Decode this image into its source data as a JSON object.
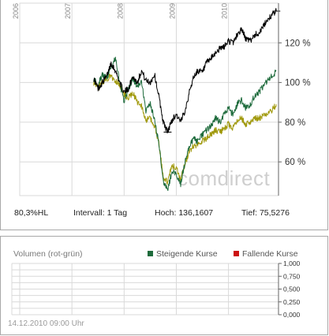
{
  "chart_data": [
    {
      "type": "line",
      "x_range": [
        "2006-01",
        "2010-12"
      ],
      "year_labels": [
        "2006",
        "2007",
        "2008",
        "2009",
        "2010"
      ],
      "ylim": [
        43,
        140
      ],
      "y_ticks": [
        60,
        80,
        100,
        120
      ],
      "y_tick_labels": [
        "60 %",
        "80 %",
        "100 %",
        "120 %"
      ],
      "series": [
        {
          "color": "#000000",
          "x": [
            "2007-06",
            "2007-07",
            "2007-08",
            "2007-09",
            "2007-10",
            "2007-11",
            "2007-12",
            "2008-01",
            "2008-02",
            "2008-03",
            "2008-04",
            "2008-05",
            "2008-06",
            "2008-07",
            "2008-08",
            "2008-09",
            "2008-10",
            "2008-11",
            "2008-12",
            "2009-01",
            "2009-02",
            "2009-03",
            "2009-04",
            "2009-05",
            "2009-06",
            "2009-07",
            "2009-08",
            "2009-09",
            "2009-10",
            "2009-11",
            "2009-12",
            "2010-01",
            "2010-02",
            "2010-03",
            "2010-04",
            "2010-05",
            "2010-06",
            "2010-07",
            "2010-08",
            "2010-09",
            "2010-10",
            "2010-11",
            "2010-12"
          ],
          "y": [
            102,
            97,
            100,
            103,
            110,
            106,
            100,
            95,
            97,
            103,
            100,
            106,
            101,
            100,
            104,
            93,
            80,
            75,
            81,
            84,
            80,
            86,
            95,
            103,
            106,
            105,
            110,
            112,
            115,
            117,
            118,
            121,
            120,
            124,
            127,
            122,
            121,
            124,
            125,
            128,
            132,
            134,
            136
          ]
        },
        {
          "color": "#1e6b3c",
          "x": [
            "2007-06",
            "2007-07",
            "2007-08",
            "2007-09",
            "2007-10",
            "2007-11",
            "2007-12",
            "2008-01",
            "2008-02",
            "2008-03",
            "2008-04",
            "2008-05",
            "2008-06",
            "2008-07",
            "2008-08",
            "2008-09",
            "2008-10",
            "2008-11",
            "2008-12",
            "2009-01",
            "2009-02",
            "2009-03",
            "2009-04",
            "2009-05",
            "2009-06",
            "2009-07",
            "2009-08",
            "2009-09",
            "2009-10",
            "2009-11",
            "2009-12",
            "2010-01",
            "2010-02",
            "2010-03",
            "2010-04",
            "2010-05",
            "2010-06",
            "2010-07",
            "2010-08",
            "2010-09",
            "2010-10",
            "2010-11",
            "2010-12"
          ],
          "y": [
            102,
            99,
            104,
            102,
            108,
            112,
            100,
            90,
            97,
            102,
            98,
            100,
            86,
            89,
            81,
            69,
            50,
            46,
            55,
            54,
            49,
            60,
            68,
            72,
            70,
            74,
            76,
            78,
            82,
            80,
            84,
            87,
            84,
            89,
            91,
            87,
            89,
            93,
            95,
            98,
            101,
            103,
            106
          ]
        },
        {
          "color": "#a19a0e",
          "x": [
            "2007-06",
            "2007-07",
            "2007-08",
            "2007-09",
            "2007-10",
            "2007-11",
            "2007-12",
            "2008-01",
            "2008-02",
            "2008-03",
            "2008-04",
            "2008-05",
            "2008-06",
            "2008-07",
            "2008-08",
            "2008-09",
            "2008-10",
            "2008-11",
            "2008-12",
            "2009-01",
            "2009-02",
            "2009-03",
            "2009-04",
            "2009-05",
            "2009-06",
            "2009-07",
            "2009-08",
            "2009-09",
            "2009-10",
            "2009-11",
            "2009-12",
            "2010-01",
            "2010-02",
            "2010-03",
            "2010-04",
            "2010-05",
            "2010-06",
            "2010-07",
            "2010-08",
            "2010-09",
            "2010-10",
            "2010-11",
            "2010-12"
          ],
          "y": [
            100,
            97,
            100,
            102,
            103,
            101,
            99,
            94,
            92,
            95,
            90,
            88,
            81,
            82,
            78,
            70,
            52,
            50,
            58,
            57,
            51,
            59,
            65,
            68,
            69,
            71,
            72,
            74,
            76,
            75,
            77,
            79,
            77,
            81,
            82,
            79,
            80,
            82,
            82,
            83,
            85,
            86,
            89
          ]
        }
      ]
    },
    {
      "type": "bar",
      "title": "Volumen (rot-grün)",
      "ylim": [
        0,
        1
      ],
      "y_ticks": [
        0,
        0.25,
        0.5,
        0.75,
        1
      ],
      "y_tick_labels": [
        "0,000",
        "0,250",
        "0,500",
        "0,750",
        "1,000"
      ],
      "series": [
        {
          "name": "Steigende Kurse",
          "color": "#1e6b3c",
          "values": []
        },
        {
          "name": "Fallende Kurse",
          "color": "#cc1111",
          "values": []
        }
      ]
    }
  ],
  "watermark": "comdirect",
  "stats": {
    "label": "80,3%HL",
    "interval": "Intervall: 1 Tag",
    "high": "Hoch: 136,1607",
    "low": "Tief: 75,5276"
  },
  "timestamp": "14.12.2010 09:00 Uhr",
  "colors": {
    "grid": "#d9d9d9",
    "border": "#a8a8a8",
    "axis_text": "#888888"
  }
}
